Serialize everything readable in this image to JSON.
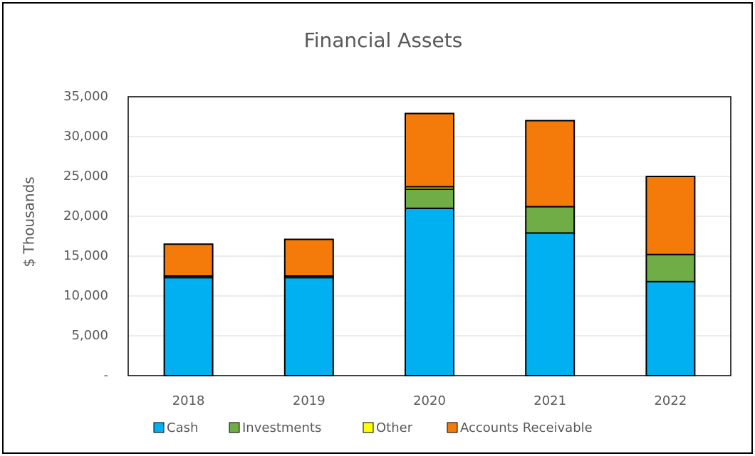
{
  "chart_data": {
    "type": "stacked_bar",
    "title": "Financial Assets",
    "y_label": "$ Thousands",
    "categories": [
      "2018",
      "2019",
      "2020",
      "2021",
      "2022"
    ],
    "series": [
      {
        "name": "Cash",
        "color": "#00b0f0",
        "values": [
          12300,
          12300,
          21000,
          17900,
          11800
        ]
      },
      {
        "name": "Investments",
        "color": "#70ad47",
        "values": [
          0,
          0,
          2400,
          3300,
          3400
        ]
      },
      {
        "name": "Other",
        "color": "#ffff00",
        "values": [
          200,
          200,
          300,
          0,
          0
        ]
      },
      {
        "name": "Accounts Receivable",
        "color": "#f47a0a",
        "values": [
          4000,
          4600,
          9200,
          10800,
          9800
        ]
      }
    ],
    "ylim": [
      0,
      35000
    ],
    "yticks": [
      {
        "value": 0,
        "label": "-"
      },
      {
        "value": 5000,
        "label": "5,000"
      },
      {
        "value": 10000,
        "label": "10,000"
      },
      {
        "value": 15000,
        "label": "15,000"
      },
      {
        "value": 20000,
        "label": "20,000"
      },
      {
        "value": 25000,
        "label": "25,000"
      },
      {
        "value": 30000,
        "label": "30,000"
      },
      {
        "value": 35000,
        "label": "35,000"
      }
    ],
    "grid": true
  }
}
